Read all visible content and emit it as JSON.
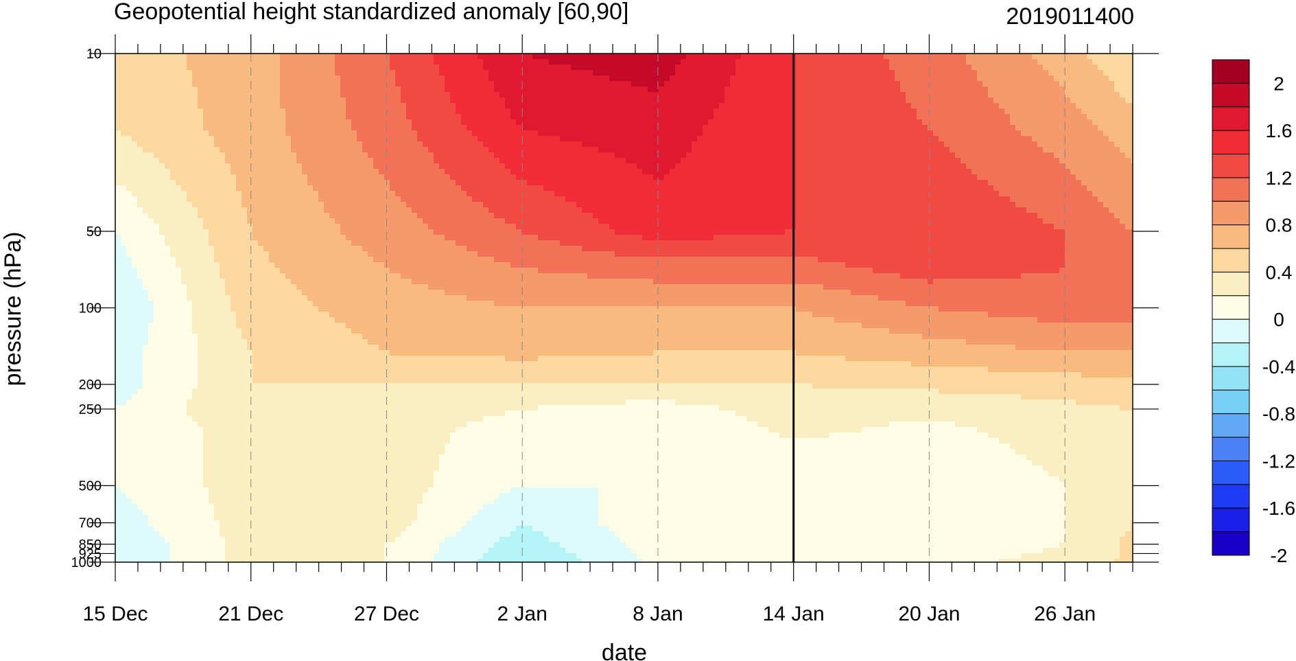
{
  "chart_data": {
    "type": "heatmap",
    "title": "Geopotential height standardized anomaly [60,90]",
    "subtitle": "2019011400",
    "xlabel": "date",
    "ylabel": "pressure (hPa)",
    "x_ticks": [
      "15 Dec",
      "21 Dec",
      "27 Dec",
      "2 Jan",
      "8 Jan",
      "14 Jan",
      "20 Jan",
      "26 Jan"
    ],
    "x_range": [
      "2018-12-15",
      "2019-01-29"
    ],
    "y_ticks": [
      "10",
      "50",
      "100",
      "200",
      "250",
      "500",
      "700",
      "850",
      "925",
      "1000"
    ],
    "y_range_hPa": [
      1000,
      10
    ],
    "y_scale": "log",
    "marker_date": "2019-01-14",
    "colorbar_labels": [
      "2",
      "1.6",
      "1.2",
      "0.8",
      "0.4",
      "0",
      "-0.4",
      "-0.8",
      "-1.2",
      "-1.6",
      "-2"
    ],
    "contour_levels": [
      -2,
      -1.8,
      -1.6,
      -1.4,
      -1.2,
      -1.0,
      -0.8,
      -0.6,
      -0.4,
      -0.2,
      0,
      0.2,
      0.4,
      0.6,
      0.8,
      1.0,
      1.2,
      1.4,
      1.6,
      1.8,
      2.0
    ],
    "colors": [
      "#1a00c8",
      "#1a1ee6",
      "#1f3cf5",
      "#2a5af7",
      "#4a82f5",
      "#62a8f5",
      "#78cff5",
      "#93e3f5",
      "#b4f3f8",
      "#dcfafa",
      "#fefce6",
      "#fbeec0",
      "#fbd89f",
      "#f9ba80",
      "#f59a6b",
      "#f27257",
      "#f04a43",
      "#f22c37",
      "#e01830",
      "#c40a28",
      "#a30020"
    ],
    "x_dates": [
      "2018-12-15",
      "2018-12-21",
      "2018-12-27",
      "2019-01-02",
      "2019-01-08",
      "2019-01-14",
      "2019-01-20",
      "2019-01-26",
      "2019-01-29"
    ],
    "y_levels_hPa": [
      10,
      20,
      50,
      70,
      100,
      150,
      200,
      250,
      300,
      500,
      700,
      850,
      1000
    ],
    "z": [
      [
        0.4,
        0.6,
        1.1,
        1.7,
        1.8,
        1.3,
        1.0,
        0.6,
        0.3
      ],
      [
        0.3,
        0.6,
        1.0,
        1.5,
        1.6,
        1.3,
        1.1,
        0.8,
        0.6
      ],
      [
        -0.1,
        0.5,
        0.8,
        1.1,
        1.4,
        1.3,
        1.3,
        1.1,
        0.9
      ],
      [
        -0.2,
        0.45,
        0.7,
        0.9,
        1.0,
        1.0,
        1.2,
        1.1,
        1.0
      ],
      [
        -0.3,
        0.4,
        0.6,
        0.7,
        0.7,
        0.7,
        0.9,
        1.0,
        1.0
      ],
      [
        -0.2,
        0.3,
        0.5,
        0.55,
        0.5,
        0.5,
        0.6,
        0.7,
        0.7
      ],
      [
        -0.2,
        0.3,
        0.3,
        0.3,
        0.3,
        0.3,
        0.35,
        0.4,
        0.45
      ],
      [
        -0.1,
        0.3,
        0.25,
        0.1,
        0.0,
        0.2,
        0.15,
        0.25,
        0.3
      ],
      [
        -0.1,
        0.2,
        0.2,
        0.0,
        -0.1,
        0.15,
        0.05,
        0.2,
        0.25
      ],
      [
        -0.1,
        0.2,
        0.2,
        -0.1,
        -0.1,
        -0.1,
        -0.1,
        0.1,
        0.2
      ],
      [
        -0.2,
        0.2,
        0.2,
        -0.3,
        0.05,
        0.1,
        0.0,
        0.1,
        0.3
      ],
      [
        -0.3,
        0.2,
        0.1,
        -0.4,
        0.0,
        0.05,
        0.0,
        0.1,
        0.35
      ],
      [
        -0.3,
        0.2,
        0.1,
        -0.5,
        -0.05,
        0.1,
        0.05,
        0.15,
        0.35
      ]
    ]
  }
}
